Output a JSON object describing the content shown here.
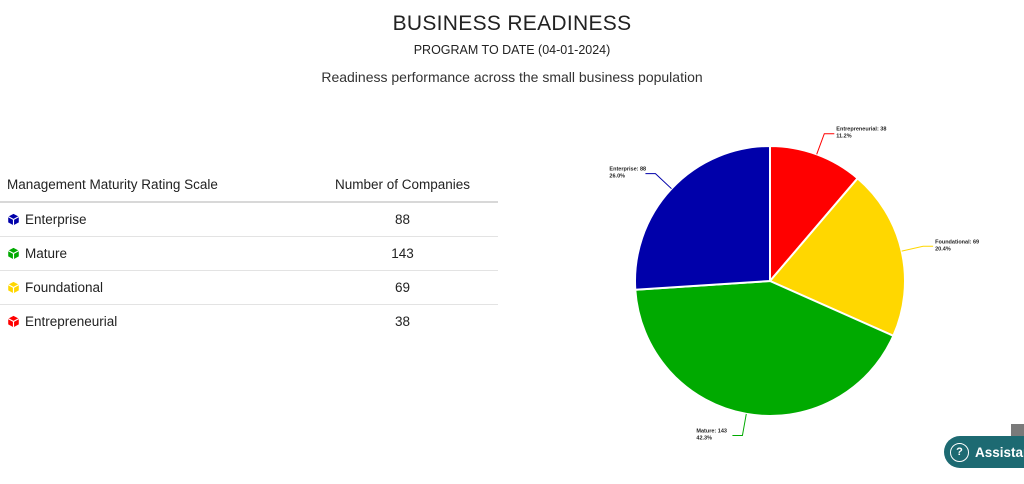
{
  "header": {
    "title": "BUSINESS READINESS",
    "subtitle": "PROGRAM TO DATE (04-01-2024)",
    "description": "Readiness performance across the small business population"
  },
  "table": {
    "headers": [
      "Management Maturity Rating Scale",
      "Number of Companies"
    ],
    "rows": [
      {
        "label": "Enterprise",
        "value": "88",
        "color": "#0000aa",
        "icon": "cube-icon"
      },
      {
        "label": "Mature",
        "value": "143",
        "color": "#00aa00",
        "icon": "cube-icon"
      },
      {
        "label": "Foundational",
        "value": "69",
        "color": "#ffd700",
        "icon": "cube-icon"
      },
      {
        "label": "Entrepreneurial",
        "value": "38",
        "color": "#ff0000",
        "icon": "cube-icon"
      }
    ]
  },
  "chart_data": {
    "type": "pie",
    "slices": [
      {
        "label": "Entrepreneurial: 38",
        "name": "Entrepreneurial",
        "value": 38,
        "percent": "11.2%",
        "color": "#ff0000"
      },
      {
        "label": "Foundational: 69",
        "name": "Foundational",
        "value": 69,
        "percent": "20.4%",
        "color": "#ffd700"
      },
      {
        "label": "Mature: 143",
        "name": "Mature",
        "value": 143,
        "percent": "42.3%",
        "color": "#00aa00"
      },
      {
        "label": "Enterprise: 88",
        "name": "Enterprise",
        "value": 88,
        "percent": "26.0%",
        "color": "#0000aa"
      }
    ]
  },
  "assistant": {
    "label": "Assistance",
    "icon": "question-circle-icon"
  }
}
